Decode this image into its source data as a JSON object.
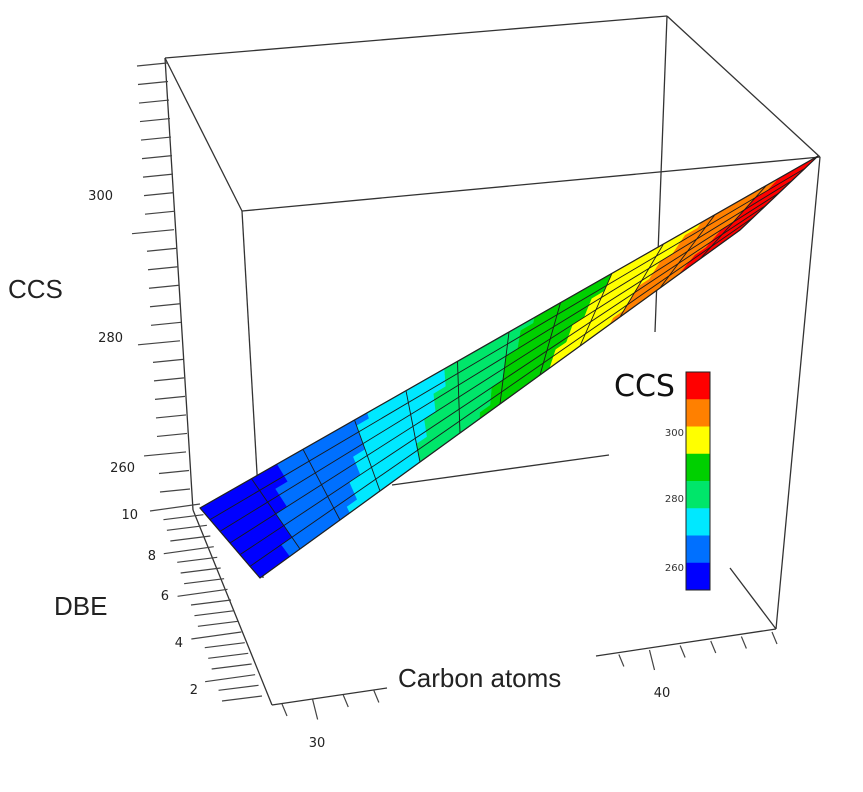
{
  "chart_data": {
    "type": "surface3d",
    "x_axis": {
      "label": "Carbon atoms",
      "ticks": [
        "30",
        "40"
      ]
    },
    "y_axis": {
      "label": "DBE",
      "ticks": [
        "2",
        "4",
        "6",
        "8",
        "10"
      ]
    },
    "z_axis": {
      "label": "CCS",
      "ticks": [
        "260",
        "280",
        "300"
      ]
    },
    "surface": {
      "ccs_range": [
        252,
        318
      ],
      "grid": {
        "carbon_cols": 12,
        "dbe_rows": 6
      }
    },
    "colorbar": {
      "title": "CCS",
      "ticks": [
        "260",
        "280",
        "300"
      ],
      "colors": [
        "#0000ff",
        "#0070ff",
        "#00e8ff",
        "#00e66a",
        "#00d000",
        "#ffff00",
        "#ff8000",
        "#ff0000"
      ]
    }
  }
}
